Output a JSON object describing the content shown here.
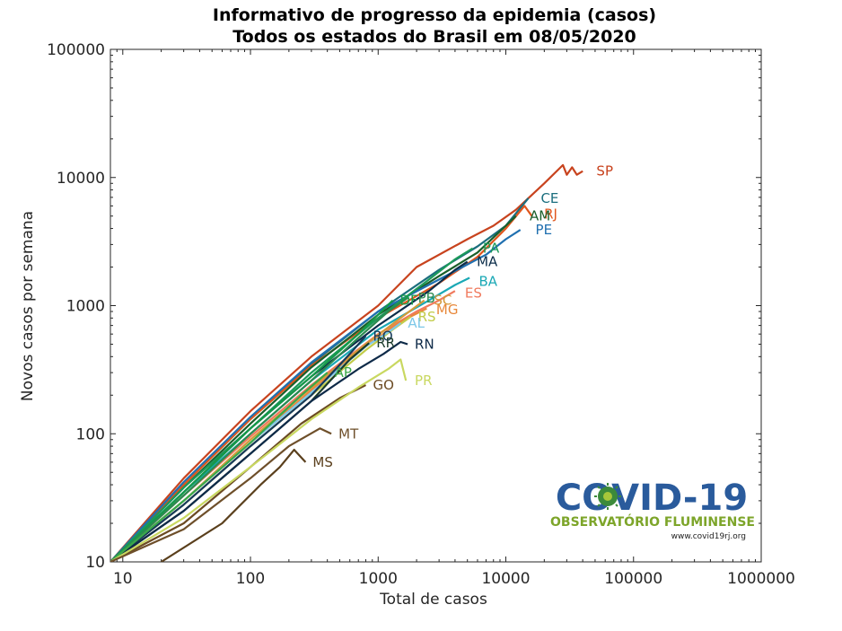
{
  "chart_data": {
    "type": "line",
    "title": "Informativo de progresso da epidemia (casos)",
    "subtitle": "Todos os estados do Brasil em 08/05/2020",
    "xlabel": "Total de casos",
    "ylabel": "Novos casos por semana",
    "x_scale": "log",
    "y_scale": "log",
    "xlim": [
      8,
      1000000
    ],
    "ylim": [
      10,
      100000
    ],
    "x_ticks": [
      10,
      100,
      1000,
      10000,
      100000,
      1000000
    ],
    "x_tick_labels": [
      "10",
      "100",
      "1000",
      "10000",
      "100000",
      "1000000"
    ],
    "y_ticks": [
      10,
      100,
      1000,
      10000,
      100000
    ],
    "y_tick_labels": [
      "10",
      "100",
      "1000",
      "10000",
      "100000"
    ],
    "grid": false,
    "series": [
      {
        "name": "SP",
        "color": "#c8431e",
        "labelAt": [
          45000,
          11200
        ],
        "x": [
          8,
          30,
          100,
          300,
          1000,
          2000,
          5000,
          8000,
          12000,
          20000,
          28000,
          30000,
          33000,
          36000,
          40000
        ],
        "y": [
          10,
          45,
          150,
          400,
          1000,
          2000,
          3300,
          4200,
          5600,
          9000,
          12500,
          10500,
          12000,
          10500,
          11200
        ]
      },
      {
        "name": "CE",
        "color": "#1b6e7e",
        "labelAt": [
          16500,
          6900
        ],
        "x": [
          8,
          30,
          100,
          300,
          1000,
          3000,
          6000,
          10000,
          15000
        ],
        "y": [
          10,
          40,
          130,
          350,
          900,
          1900,
          2900,
          4200,
          6900
        ]
      },
      {
        "name": "RJ",
        "color": "#e0561d",
        "labelAt": [
          17500,
          5200
        ],
        "x": [
          8,
          30,
          100,
          300,
          1000,
          3000,
          6000,
          10000,
          14000,
          16000
        ],
        "y": [
          10,
          40,
          130,
          340,
          800,
          1500,
          2400,
          4000,
          6000,
          5000
        ]
      },
      {
        "name": "AM",
        "color": "#1a5e2a",
        "labelAt": [
          13500,
          5000
        ],
        "x": [
          8,
          30,
          100,
          300,
          1000,
          3000,
          6000,
          9000,
          12000
        ],
        "y": [
          10,
          38,
          120,
          330,
          850,
          1700,
          2600,
          3800,
          5000
        ]
      },
      {
        "name": "PE",
        "color": "#2070b0",
        "labelAt": [
          15000,
          3900
        ],
        "x": [
          8,
          30,
          100,
          300,
          1000,
          3000,
          7000,
          10000,
          13000
        ],
        "y": [
          10,
          42,
          135,
          360,
          900,
          1600,
          2500,
          3300,
          3900
        ]
      },
      {
        "name": "PA",
        "color": "#1c9a5a",
        "labelAt": [
          5800,
          2800
        ],
        "x": [
          8,
          30,
          100,
          300,
          1000,
          2500,
          4000,
          5500
        ],
        "y": [
          10,
          38,
          110,
          300,
          800,
          1600,
          2300,
          2800
        ]
      },
      {
        "name": "MA",
        "color": "#0c2d4a",
        "labelAt": [
          5200,
          2200
        ],
        "x": [
          8,
          30,
          100,
          300,
          1000,
          2500,
          4000,
          5000
        ],
        "y": [
          10,
          35,
          110,
          280,
          700,
          1300,
          1900,
          2200
        ]
      },
      {
        "name": "BA",
        "color": "#1aa8b5",
        "labelAt": [
          5400,
          1550
        ],
        "x": [
          8,
          30,
          100,
          300,
          1000,
          2500,
          4000,
          5200
        ],
        "y": [
          10,
          35,
          100,
          260,
          650,
          1100,
          1450,
          1650
        ]
      },
      {
        "name": "ES",
        "color": "#f07a5e",
        "labelAt": [
          4200,
          1250
        ],
        "x": [
          8,
          30,
          100,
          300,
          1000,
          2000,
          3000,
          4000
        ],
        "y": [
          10,
          33,
          95,
          240,
          600,
          900,
          1100,
          1300
        ]
      },
      {
        "name": "SC",
        "color": "#d39a3a",
        "labelAt": [
          2400,
          1100
        ],
        "x": [
          8,
          30,
          100,
          300,
          800,
          1500,
          2300
        ],
        "y": [
          10,
          30,
          90,
          230,
          500,
          800,
          1100
        ]
      },
      {
        "name": "MG",
        "color": "#e8883a",
        "labelAt": [
          2500,
          930
        ],
        "x": [
          8,
          30,
          100,
          300,
          800,
          1500,
          2400
        ],
        "y": [
          10,
          30,
          85,
          220,
          480,
          750,
          950
        ]
      },
      {
        "name": "RS",
        "color": "#c2cc4a",
        "labelAt": [
          1800,
          820
        ],
        "x": [
          8,
          30,
          100,
          300,
          800,
          1300,
          1800
        ],
        "y": [
          10,
          28,
          80,
          200,
          450,
          650,
          820
        ]
      },
      {
        "name": "AL",
        "color": "#7ec8e8",
        "labelAt": [
          1500,
          730
        ],
        "x": [
          8,
          30,
          100,
          300,
          800,
          1200,
          1500
        ],
        "y": [
          10,
          30,
          85,
          210,
          480,
          620,
          730
        ]
      },
      {
        "name": "DF",
        "color": "#149a48",
        "labelAt": [
          1300,
          1100
        ],
        "x": [
          8,
          30,
          100,
          300,
          700,
          1000,
          1300
        ],
        "y": [
          10,
          35,
          110,
          280,
          600,
          850,
          1100
        ]
      },
      {
        "name": "PB",
        "color": "#2b8a50",
        "labelAt": [
          1800,
          1150
        ],
        "x": [
          8,
          30,
          100,
          300,
          700,
          1200,
          1700
        ],
        "y": [
          10,
          33,
          100,
          260,
          560,
          900,
          1150
        ]
      },
      {
        "name": "RO",
        "color": "#163a5a",
        "labelAt": [
          800,
          580
        ],
        "x": [
          8,
          30,
          100,
          300,
          600,
          800
        ],
        "y": [
          10,
          28,
          80,
          200,
          420,
          580
        ]
      },
      {
        "name": "RR",
        "color": "#1a3a2a",
        "labelAt": [
          850,
          510
        ],
        "x": [
          8,
          30,
          100,
          300,
          600,
          850
        ],
        "y": [
          10,
          25,
          70,
          180,
          380,
          510
        ]
      },
      {
        "name": "RN",
        "color": "#0e2a48",
        "labelAt": [
          1700,
          500
        ],
        "x": [
          8,
          30,
          100,
          300,
          700,
          1100,
          1500,
          1700
        ],
        "y": [
          10,
          25,
          70,
          180,
          320,
          420,
          520,
          500
        ]
      },
      {
        "name": "AP",
        "color": "#3aa848",
        "labelAt": [
          400,
          300
        ],
        "x": [
          8,
          30,
          100,
          250,
          400
        ],
        "y": [
          10,
          30,
          85,
          200,
          300
        ]
      },
      {
        "name": "GO",
        "color": "#6b4a22",
        "labelAt": [
          800,
          240
        ],
        "x": [
          8,
          30,
          100,
          250,
          500,
          800
        ],
        "y": [
          10,
          20,
          55,
          120,
          190,
          240
        ]
      },
      {
        "name": "PR",
        "color": "#c9d860",
        "labelAt": [
          1700,
          260
        ],
        "x": [
          8,
          30,
          100,
          300,
          700,
          1200,
          1500,
          1650
        ],
        "y": [
          10,
          22,
          55,
          130,
          230,
          320,
          380,
          260
        ]
      },
      {
        "name": "MT",
        "color": "#6e4f2a",
        "labelAt": [
          430,
          100
        ],
        "x": [
          8,
          30,
          100,
          200,
          350,
          430
        ],
        "y": [
          10,
          18,
          45,
          80,
          110,
          100
        ]
      },
      {
        "name": "MS",
        "color": "#5a3f1c",
        "labelAt": [
          270,
          60
        ],
        "x": [
          20,
          60,
          120,
          170,
          220,
          270
        ],
        "y": [
          10,
          20,
          40,
          55,
          75,
          60
        ]
      }
    ]
  },
  "logo": {
    "title": "COVID-19",
    "subtitle": "OBSERVATÓRIO FLUMINENSE",
    "url": "www.covid19rj.org",
    "primary_color": "#2a5b9c",
    "secondary_color": "#7da52a"
  }
}
